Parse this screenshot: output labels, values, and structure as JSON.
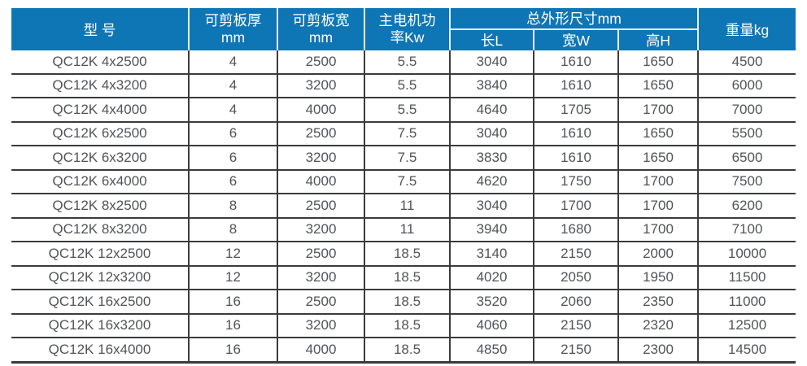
{
  "colors": {
    "header_bg": "#0f76b5",
    "header_text": "#ffffff",
    "body_text": "#515359",
    "grid_line": "#3b3b3d",
    "header_divider": "#e6f0f7"
  },
  "table": {
    "column_keys": [
      "model",
      "thickness",
      "plate-width",
      "power",
      "length",
      "width",
      "height",
      "weight"
    ],
    "header": {
      "model": "型 号",
      "thickness_line1": "可剪板厚",
      "thickness_line2": "mm",
      "plate_width_line1": "可剪板宽",
      "plate_width_line2": "mm",
      "power_line1": "主电机功",
      "power_line2": "率Kw",
      "dimensions": "总外形尺寸mm",
      "length": "长L",
      "width": "宽W",
      "height": "高H",
      "weight": "重量kg"
    },
    "rows": [
      [
        "QC12K 4x2500",
        "4",
        "2500",
        "5.5",
        "3040",
        "1610",
        "1650",
        "4500"
      ],
      [
        "QC12K 4x3200",
        "4",
        "3200",
        "5.5",
        "3840",
        "1610",
        "1650",
        "6000"
      ],
      [
        "QC12K 4x4000",
        "4",
        "4000",
        "5.5",
        "4640",
        "1705",
        "1700",
        "7000"
      ],
      [
        "QC12K 6x2500",
        "6",
        "2500",
        "7.5",
        "3040",
        "1610",
        "1650",
        "5500"
      ],
      [
        "QC12K 6x3200",
        "6",
        "3200",
        "7.5",
        "3830",
        "1610",
        "1650",
        "6500"
      ],
      [
        "QC12K 6x4000",
        "6",
        "4000",
        "7.5",
        "4620",
        "1750",
        "1700",
        "7500"
      ],
      [
        "QC12K 8x2500",
        "8",
        "2500",
        "11",
        "3040",
        "1700",
        "1700",
        "6200"
      ],
      [
        "QC12K 8x3200",
        "8",
        "3200",
        "11",
        "3940",
        "1680",
        "1700",
        "7100"
      ],
      [
        "QC12K 12x2500",
        "12",
        "2500",
        "18.5",
        "3140",
        "2150",
        "2000",
        "10000"
      ],
      [
        "QC12K 12x3200",
        "12",
        "3200",
        "18.5",
        "4020",
        "2050",
        "1950",
        "11500"
      ],
      [
        "QC12K 16x2500",
        "16",
        "2500",
        "18.5",
        "3520",
        "2060",
        "2350",
        "11000"
      ],
      [
        "QC12K 16x3200",
        "16",
        "3200",
        "18.5",
        "4060",
        "2150",
        "2320",
        "12500"
      ],
      [
        "QC12K 16x4000",
        "16",
        "4000",
        "18.5",
        "4850",
        "2150",
        "2300",
        "14500"
      ]
    ]
  }
}
